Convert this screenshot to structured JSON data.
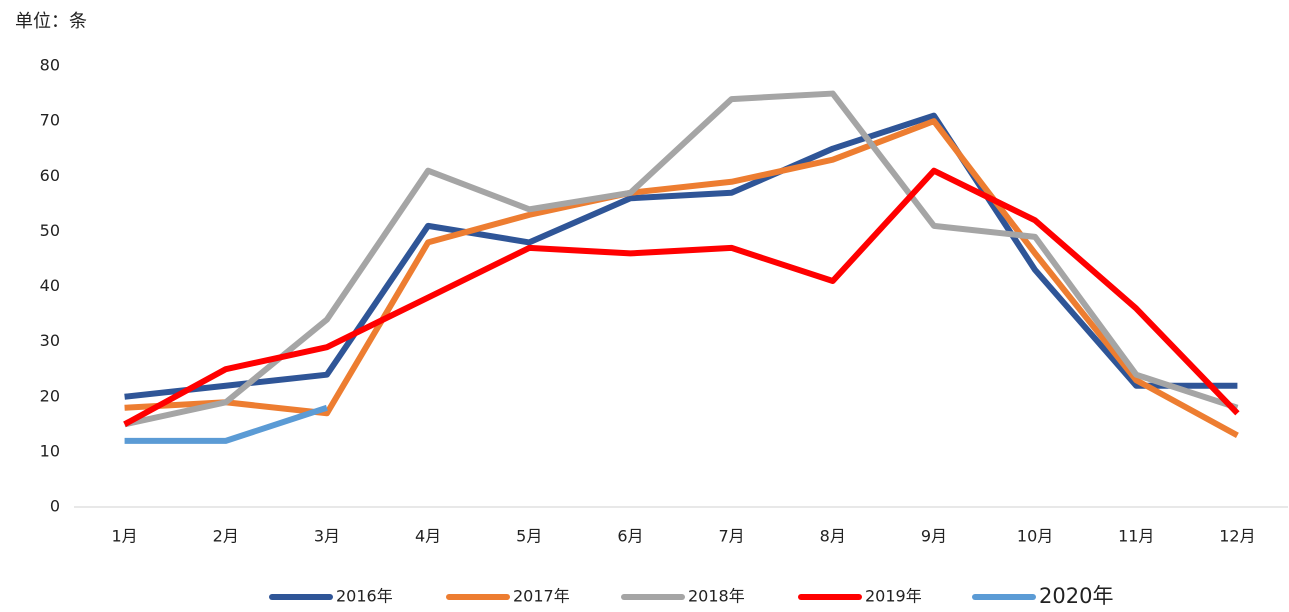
{
  "chart_data": {
    "type": "line",
    "unit": "单位：条",
    "categories": [
      "1月",
      "2月",
      "3月",
      "4月",
      "5月",
      "6月",
      "7月",
      "8月",
      "9月",
      "10月",
      "11月",
      "12月"
    ],
    "series": [
      {
        "name": "2016年",
        "color": "#2f5597",
        "values": [
          20,
          22,
          24,
          51,
          48,
          56,
          57,
          65,
          71,
          43,
          22,
          22
        ]
      },
      {
        "name": "2017年",
        "color": "#ed7d31",
        "values": [
          18,
          19,
          17,
          48,
          53,
          57,
          59,
          63,
          70,
          46,
          23,
          13
        ]
      },
      {
        "name": "2018年",
        "color": "#a5a5a5",
        "values": [
          15,
          19,
          34,
          61,
          54,
          57,
          74,
          75,
          51,
          49,
          24,
          18
        ]
      },
      {
        "name": "2019年",
        "color": "#ff0000",
        "values": [
          15,
          25,
          29,
          38,
          47,
          46,
          47,
          41,
          61,
          52,
          36,
          17
        ]
      },
      {
        "name": "2020年",
        "color": "#5b9bd5",
        "values": [
          12,
          12,
          18,
          null,
          null,
          null,
          null,
          null,
          null,
          null,
          null,
          null
        ]
      }
    ],
    "ylim": [
      0,
      80
    ],
    "yticks": [
      0,
      10,
      20,
      30,
      40,
      50,
      60,
      70,
      80
    ],
    "grid": false,
    "legend": "bottom"
  }
}
